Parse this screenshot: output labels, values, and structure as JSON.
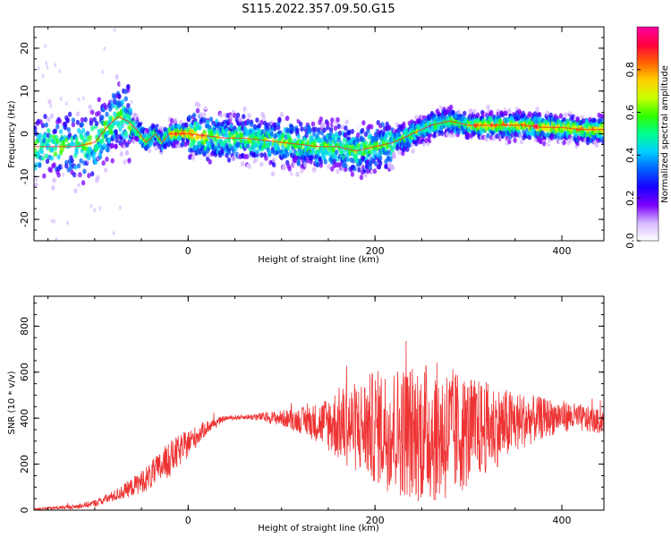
{
  "chart_data": [
    {
      "type": "heatmap",
      "title": "S115.2022.357.09.50.G15",
      "xlabel": "Height of straight line (km)",
      "ylabel": "Frequency (Hz)",
      "xlim": [
        -165,
        445
      ],
      "ylim": [
        -25,
        25
      ],
      "x_ticks": [
        0,
        200,
        400
      ],
      "y_ticks": [
        -20,
        -10,
        0,
        10,
        20
      ],
      "colorbar": {
        "label": "Normalized spectral amplitude",
        "range": [
          0,
          1
        ],
        "ticks": [
          0.0,
          0.2,
          0.4,
          0.6,
          0.8
        ],
        "colors": [
          "#ffffff",
          "#d6b8ff",
          "#7a00ff",
          "#1a00ff",
          "#0060ff",
          "#00d0ff",
          "#00ff90",
          "#30ff00",
          "#c8ff00",
          "#ffd000",
          "#ff6000",
          "#ff0040",
          "#ff00a0"
        ]
      },
      "ridge": {
        "x": [
          -165,
          -140,
          -120,
          -100,
          -85,
          -75,
          -65,
          -55,
          -45,
          -35,
          -28,
          -20,
          -10,
          0,
          20,
          40,
          60,
          80,
          100,
          120,
          140,
          160,
          180,
          200,
          220,
          240,
          260,
          280,
          300,
          320,
          340,
          360,
          380,
          400,
          420,
          445
        ],
        "y": [
          -3,
          -3,
          -3,
          -2,
          2,
          4,
          3,
          1,
          -2,
          0,
          -2,
          0,
          0,
          0,
          -0.5,
          -1,
          -1,
          -1.5,
          -2,
          -2.5,
          -3,
          -3,
          -4,
          -3,
          -2,
          0,
          2,
          3,
          2,
          2,
          2,
          2,
          1.5,
          1.5,
          1,
          1
        ]
      }
    },
    {
      "type": "line",
      "xlabel": "Height of straight line (km)",
      "ylabel": "SNR (10 * v/v)",
      "xlim": [
        -165,
        445
      ],
      "ylim": [
        0,
        930
      ],
      "x_ticks": [
        0,
        200,
        400
      ],
      "y_ticks": [
        0,
        200,
        400,
        600,
        800
      ],
      "color": "#ee3333",
      "envelope": {
        "x": [
          -165,
          -140,
          -120,
          -100,
          -80,
          -60,
          -40,
          -20,
          0,
          20,
          40,
          60,
          80,
          100,
          120,
          140,
          160,
          180,
          200,
          220,
          240,
          260,
          280,
          300,
          320,
          340,
          360,
          380,
          400,
          420,
          445
        ],
        "mean": [
          5,
          10,
          15,
          30,
          60,
          100,
          150,
          220,
          290,
          360,
          400,
          405,
          405,
          400,
          390,
          380,
          375,
          360,
          360,
          350,
          340,
          340,
          330,
          340,
          360,
          370,
          390,
          400,
          410,
          400,
          380
        ],
        "spread": [
          5,
          8,
          10,
          15,
          25,
          40,
          60,
          80,
          60,
          30,
          10,
          10,
          20,
          35,
          55,
          90,
          160,
          200,
          250,
          280,
          300,
          310,
          300,
          240,
          200,
          160,
          120,
          90,
          70,
          60,
          50
        ]
      }
    }
  ]
}
